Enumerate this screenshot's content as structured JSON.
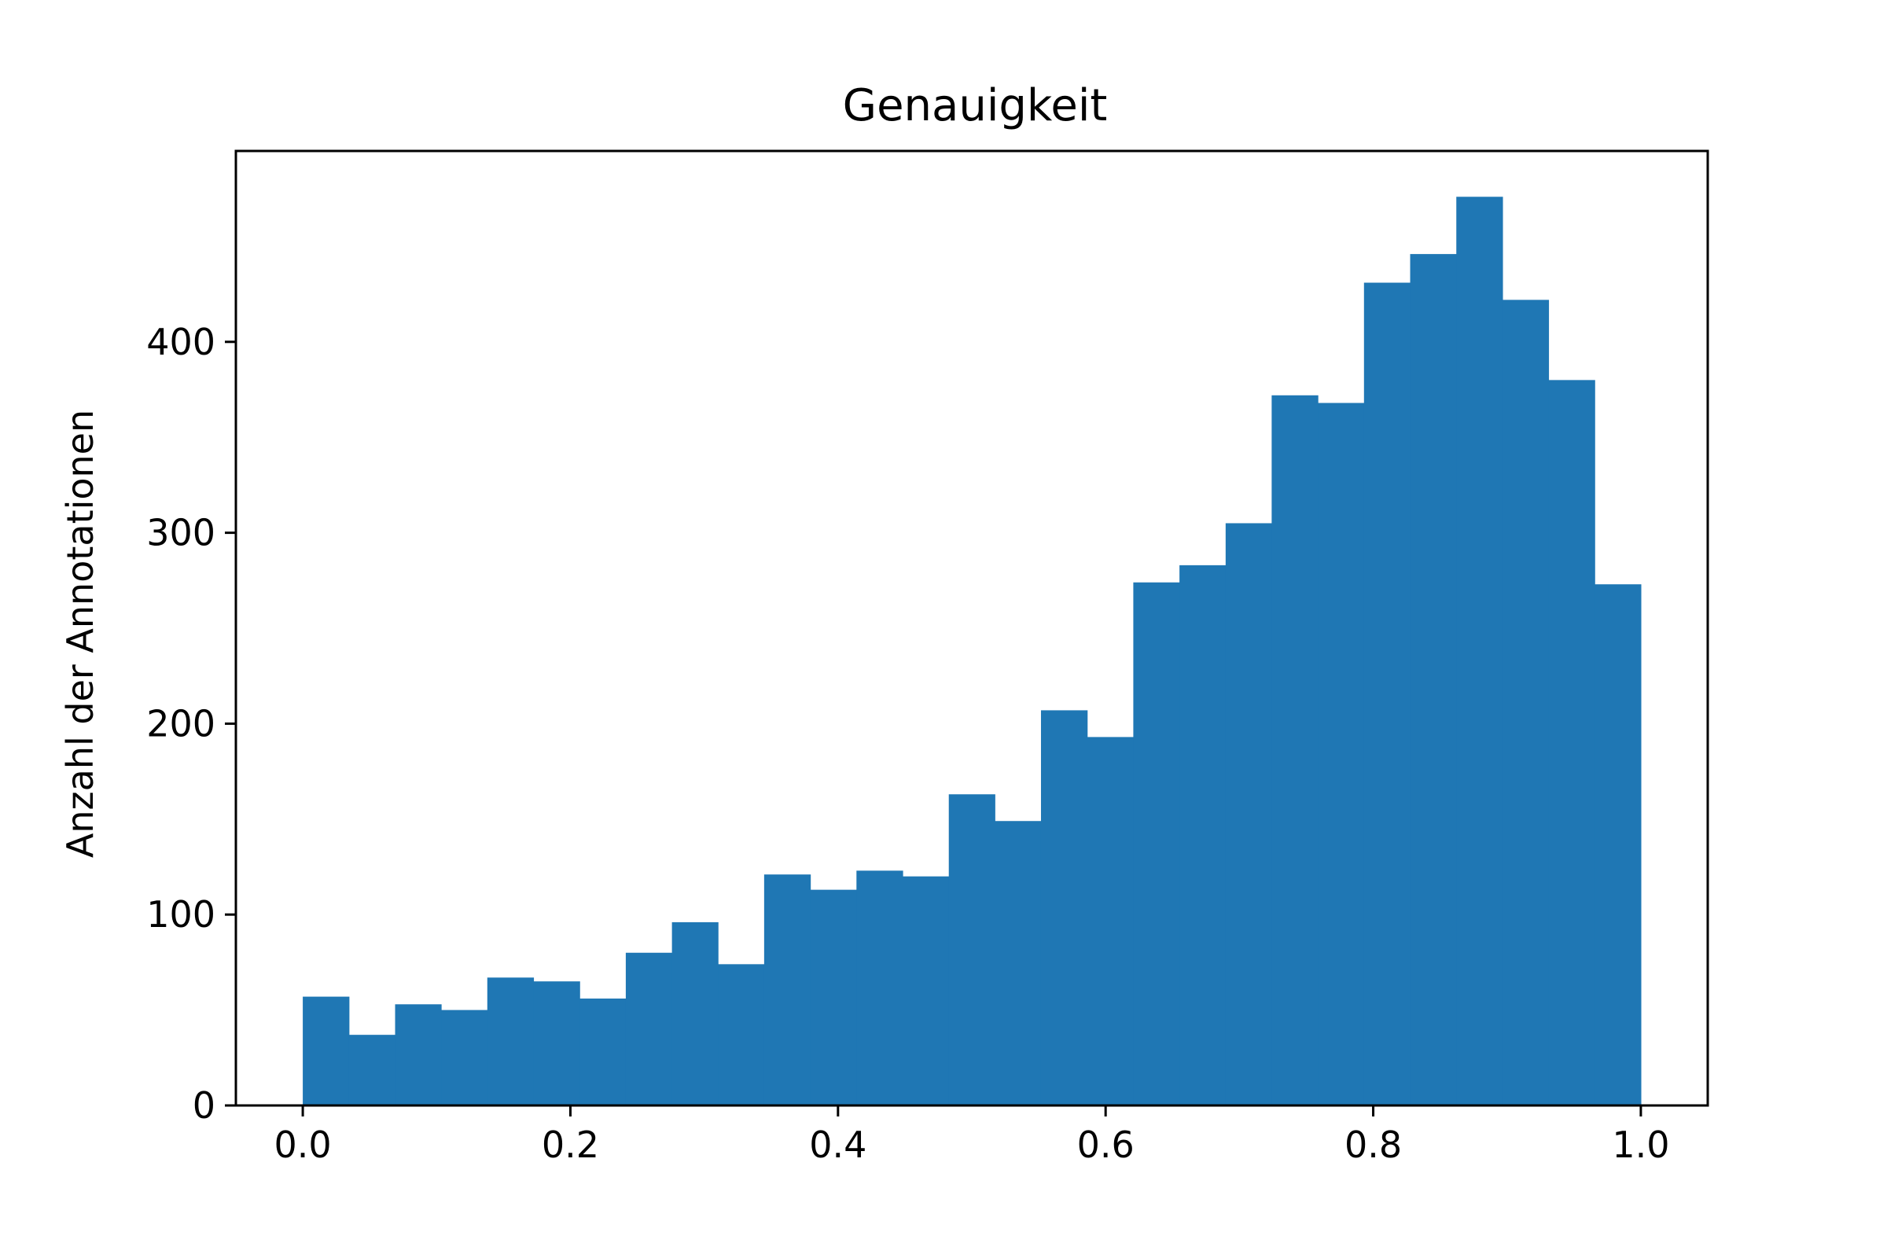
{
  "chart_data": {
    "type": "bar",
    "histogram": true,
    "title": "Genauigkeit",
    "xlabel": "",
    "ylabel": "Anzahl der Annotationen",
    "xlim": [
      -0.05,
      1.05
    ],
    "ylim": [
      0,
      500
    ],
    "xticks": [
      "0.0",
      "0.2",
      "0.4",
      "0.6",
      "0.8",
      "1.0"
    ],
    "yticks": [
      "0",
      "100",
      "200",
      "300",
      "400"
    ],
    "bin_edges": [
      0.0,
      0.0345,
      0.069,
      0.1034,
      0.1379,
      0.1724,
      0.2069,
      0.2414,
      0.2759,
      0.3103,
      0.3448,
      0.3793,
      0.4138,
      0.4483,
      0.4828,
      0.5172,
      0.5517,
      0.5862,
      0.6207,
      0.6552,
      0.6897,
      0.7241,
      0.7586,
      0.7931,
      0.8276,
      0.8621,
      0.8966,
      0.931,
      0.9655,
      1.0
    ],
    "values": [
      57,
      37,
      53,
      50,
      67,
      65,
      56,
      80,
      96,
      74,
      121,
      113,
      123,
      120,
      163,
      149,
      207,
      193,
      274,
      283,
      305,
      372,
      368,
      431,
      446,
      476,
      422,
      380,
      273
    ],
    "grid": false,
    "colors": {
      "bar": "#1f77b4",
      "axes": "#000000"
    }
  }
}
